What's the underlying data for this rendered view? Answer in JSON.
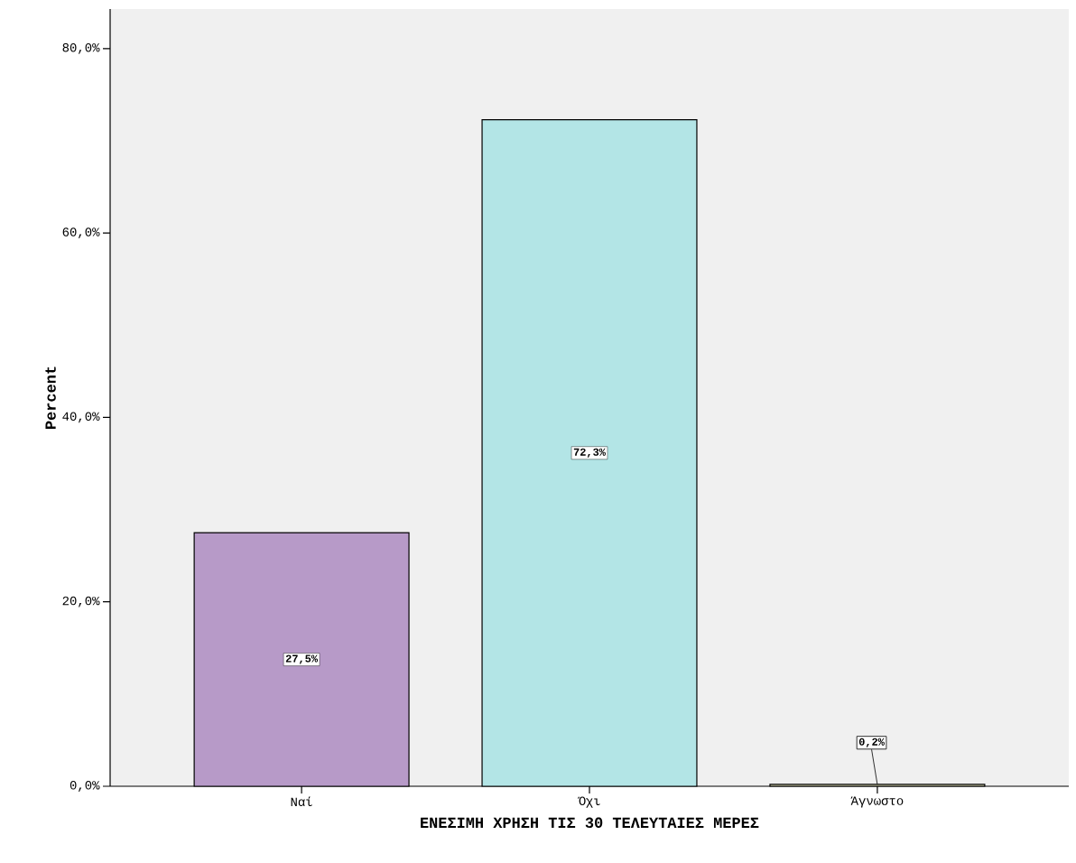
{
  "chart_data": {
    "type": "bar",
    "xlabel": "ΕΝΕΣΙΜΗ ΧΡΗΣΗ ΤΙΣ 30 ΤΕΛΕΥΤΑΙΕΣ ΜΕΡΕΣ",
    "ylabel": "Percent",
    "categories": [
      "Ναί",
      "Όχι",
      "Άγνωστο"
    ],
    "values": [
      27.5,
      72.3,
      0.2
    ],
    "colors": [
      "#b79ac8",
      "#b3e5e6",
      "#d8d8b0"
    ],
    "value_labels": [
      "27,5%",
      "72,3%",
      "0,2%"
    ],
    "ylim": [
      0,
      84.3
    ],
    "yticks": [
      {
        "value": 0,
        "label": "0,0%"
      },
      {
        "value": 20,
        "label": "20,0%"
      },
      {
        "value": 40,
        "label": "40,0%"
      },
      {
        "value": 60,
        "label": "60,0%"
      },
      {
        "value": 80,
        "label": "80,0%"
      }
    ],
    "grid": false
  }
}
